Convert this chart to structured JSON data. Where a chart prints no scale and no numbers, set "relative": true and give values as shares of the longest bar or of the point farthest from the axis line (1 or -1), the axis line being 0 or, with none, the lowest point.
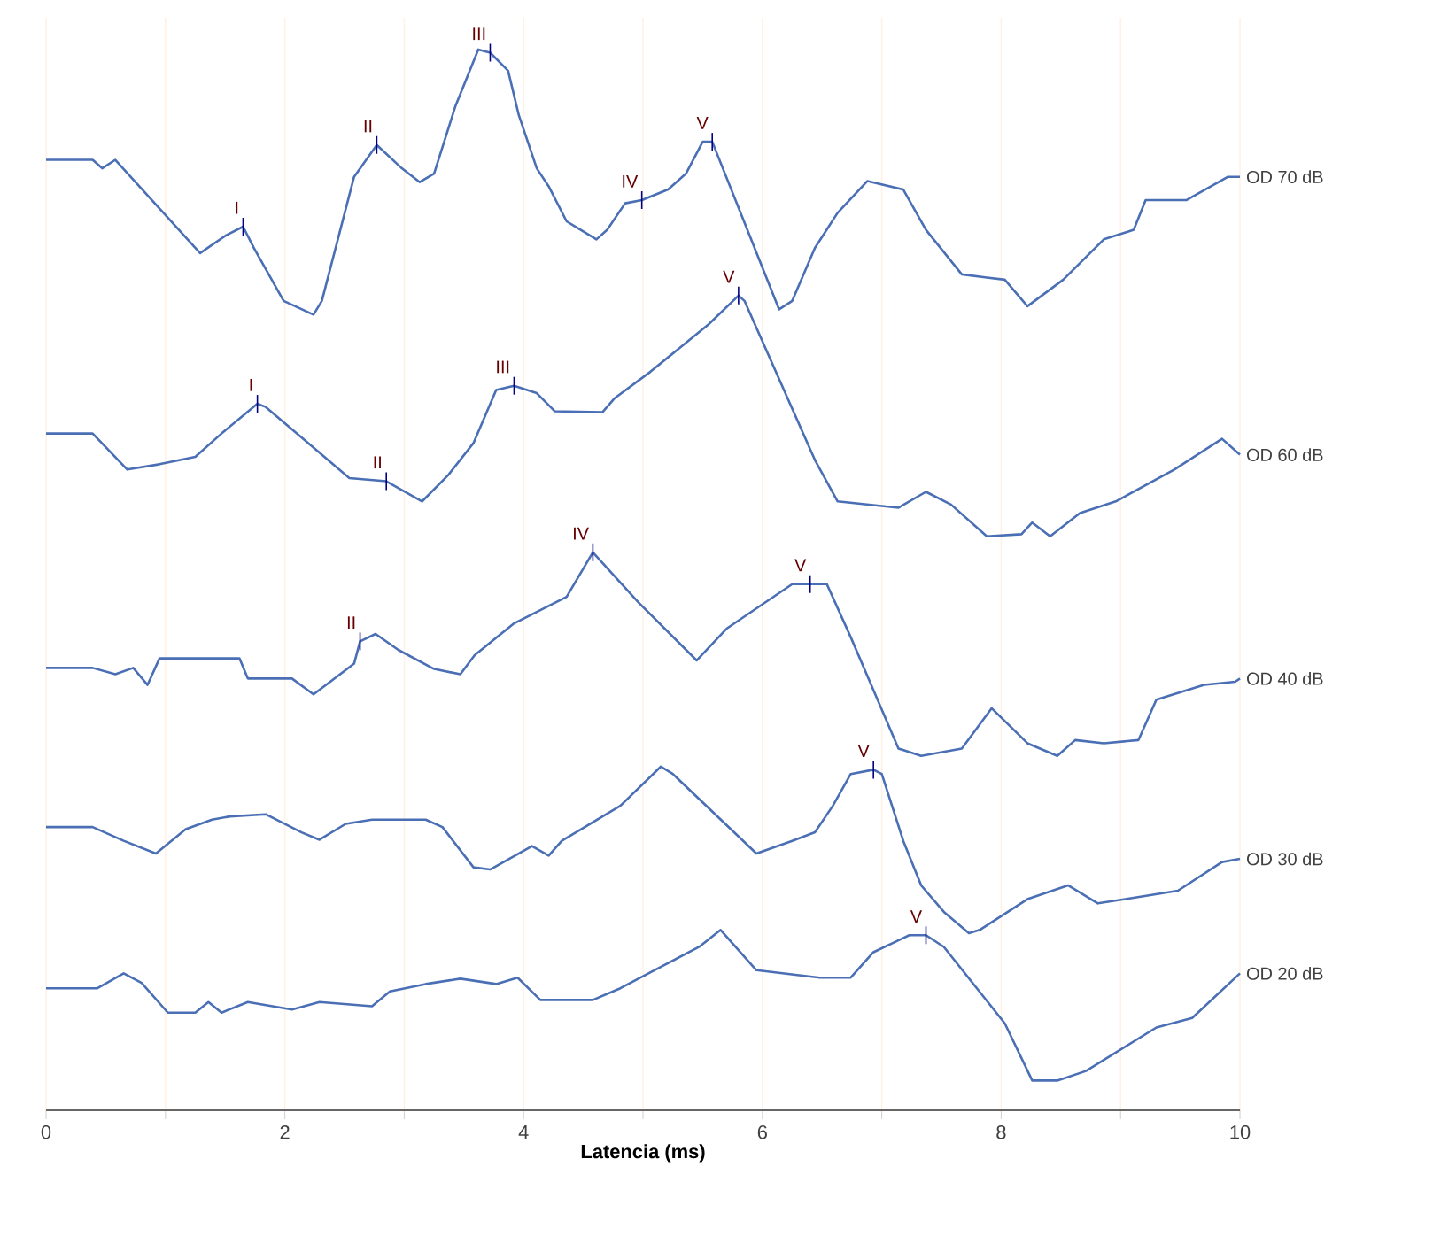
{
  "chart_data": {
    "type": "line",
    "relative": true,
    "xlabel": "Latencia (ms)",
    "xlim": [
      0,
      10
    ],
    "xticks": [
      0,
      {
        "value": 1,
        "label": null
      },
      2,
      {
        "value": 3,
        "label": null
      },
      4,
      {
        "value": 5,
        "label": null
      },
      6,
      {
        "value": 7,
        "label": null
      },
      8,
      {
        "value": 9,
        "label": null
      },
      10
    ],
    "grid": "x",
    "marker": "none",
    "line_style": "solid",
    "series": [
      {
        "name": "OD 70 dB",
        "color": "#4a6fb5",
        "x": [
          0,
          0.39,
          0.47,
          0.58,
          1.29,
          1.51,
          1.65,
          1.74,
          1.99,
          2.24,
          2.31,
          2.58,
          2.77,
          2.98,
          3.13,
          3.25,
          3.43,
          3.62,
          3.72,
          3.87,
          3.96,
          4.11,
          4.21,
          4.36,
          4.61,
          4.7,
          4.85,
          4.99,
          5.21,
          5.36,
          5.5,
          5.58,
          6.14,
          6.25,
          6.44,
          6.63,
          6.88,
          7.18,
          7.37,
          7.67,
          7.88,
          8.03,
          8.22,
          8.52,
          8.86,
          9.11,
          9.21,
          9.55,
          9.9,
          10.0
        ],
        "values": [
          0.896,
          0.896,
          0.888,
          0.896,
          0.808,
          0.825,
          0.833,
          0.813,
          0.763,
          0.75,
          0.763,
          0.88,
          0.91,
          0.888,
          0.875,
          0.883,
          0.947,
          1.0,
          0.997,
          0.98,
          0.938,
          0.888,
          0.871,
          0.838,
          0.821,
          0.83,
          0.855,
          0.858,
          0.868,
          0.883,
          0.913,
          0.913,
          0.755,
          0.763,
          0.813,
          0.846,
          0.876,
          0.868,
          0.83,
          0.788,
          0.785,
          0.783,
          0.758,
          0.783,
          0.821,
          0.83,
          0.858,
          0.858,
          0.88,
          0.88
        ]
      },
      {
        "name": "OD 60 dB",
        "color": "#4a6fb5",
        "x": [
          0,
          0.39,
          0.68,
          0.95,
          1.25,
          1.47,
          1.77,
          1.84,
          2.54,
          2.85,
          3.15,
          3.37,
          3.58,
          3.77,
          3.92,
          4.11,
          4.26,
          4.66,
          4.76,
          5.06,
          5.55,
          5.8,
          5.85,
          6.44,
          6.63,
          7.14,
          7.37,
          7.58,
          7.88,
          8.17,
          8.26,
          8.41,
          8.66,
          8.96,
          9.45,
          9.85,
          10.0
        ],
        "values": [
          0.638,
          0.638,
          0.604,
          0.609,
          0.616,
          0.638,
          0.666,
          0.663,
          0.596,
          0.593,
          0.574,
          0.599,
          0.629,
          0.679,
          0.683,
          0.676,
          0.659,
          0.658,
          0.671,
          0.696,
          0.741,
          0.768,
          0.763,
          0.613,
          0.574,
          0.568,
          0.583,
          0.571,
          0.541,
          0.543,
          0.554,
          0.541,
          0.563,
          0.574,
          0.604,
          0.633,
          0.618
        ]
      },
      {
        "name": "OD 40 dB",
        "color": "#4a6fb5",
        "x": [
          0,
          0.39,
          0.58,
          0.73,
          0.85,
          0.95,
          1.62,
          1.69,
          2.06,
          2.24,
          2.58,
          2.63,
          2.76,
          2.95,
          3.25,
          3.47,
          3.59,
          3.92,
          4.36,
          4.58,
          4.96,
          5.45,
          5.7,
          6.25,
          6.4,
          6.54,
          6.74,
          7.14,
          7.33,
          7.67,
          7.92,
          8.22,
          8.47,
          8.62,
          8.86,
          9.15,
          9.3,
          9.7,
          9.96,
          10.0
        ],
        "values": [
          0.417,
          0.417,
          0.411,
          0.417,
          0.401,
          0.426,
          0.426,
          0.407,
          0.407,
          0.392,
          0.421,
          0.442,
          0.449,
          0.434,
          0.416,
          0.411,
          0.429,
          0.459,
          0.484,
          0.526,
          0.479,
          0.424,
          0.454,
          0.496,
          0.496,
          0.496,
          0.446,
          0.341,
          0.334,
          0.341,
          0.379,
          0.346,
          0.334,
          0.349,
          0.346,
          0.349,
          0.387,
          0.401,
          0.404,
          0.407
        ]
      },
      {
        "name": "OD 30 dB",
        "color": "#4a6fb5",
        "x": [
          0,
          0.39,
          0.65,
          0.92,
          1.17,
          1.39,
          1.54,
          1.84,
          2.14,
          2.29,
          2.51,
          2.73,
          3.18,
          3.32,
          3.58,
          3.72,
          4.07,
          4.21,
          4.32,
          4.81,
          5.15,
          5.25,
          5.95,
          6.25,
          6.44,
          6.59,
          6.74,
          6.93,
          7.0,
          7.18,
          7.33,
          7.52,
          7.73,
          7.82,
          8.22,
          8.56,
          8.81,
          9.04,
          9.48,
          9.85,
          10.0
        ],
        "values": [
          0.267,
          0.267,
          0.254,
          0.242,
          0.265,
          0.274,
          0.277,
          0.279,
          0.262,
          0.255,
          0.27,
          0.274,
          0.274,
          0.267,
          0.229,
          0.227,
          0.249,
          0.24,
          0.254,
          0.287,
          0.324,
          0.317,
          0.242,
          0.254,
          0.262,
          0.287,
          0.317,
          0.321,
          0.317,
          0.254,
          0.212,
          0.187,
          0.167,
          0.17,
          0.199,
          0.212,
          0.195,
          0.199,
          0.207,
          0.234,
          0.237
        ]
      },
      {
        "name": "OD 20 dB",
        "color": "#4a6fb5",
        "x": [
          0,
          0.43,
          0.65,
          0.8,
          1.02,
          1.25,
          1.36,
          1.47,
          1.69,
          2.06,
          2.29,
          2.73,
          2.88,
          3.18,
          3.47,
          3.77,
          3.95,
          4.14,
          4.58,
          4.81,
          5.18,
          5.47,
          5.65,
          5.95,
          6.48,
          6.74,
          6.93,
          7.23,
          7.37,
          7.52,
          8.03,
          8.26,
          8.47,
          8.71,
          9.3,
          9.6,
          10.0
        ],
        "values": [
          0.115,
          0.115,
          0.129,
          0.12,
          0.092,
          0.092,
          0.102,
          0.092,
          0.102,
          0.095,
          0.102,
          0.098,
          0.112,
          0.119,
          0.124,
          0.119,
          0.125,
          0.104,
          0.104,
          0.115,
          0.137,
          0.154,
          0.17,
          0.132,
          0.125,
          0.125,
          0.149,
          0.165,
          0.165,
          0.154,
          0.082,
          0.028,
          0.028,
          0.037,
          0.078,
          0.087,
          0.129
        ]
      }
    ],
    "annotations": [
      {
        "text": "I",
        "x": 1.65,
        "y": 0.833
      },
      {
        "text": "II",
        "x": 2.77,
        "y": 0.91
      },
      {
        "text": "III",
        "x": 3.72,
        "y": 0.997
      },
      {
        "text": "IV",
        "x": 4.99,
        "y": 0.858
      },
      {
        "text": "V",
        "x": 5.58,
        "y": 0.913
      },
      {
        "text": "I",
        "x": 1.77,
        "y": 0.666
      },
      {
        "text": "II",
        "x": 2.85,
        "y": 0.593
      },
      {
        "text": "III",
        "x": 3.92,
        "y": 0.683
      },
      {
        "text": "V",
        "x": 5.8,
        "y": 0.768
      },
      {
        "text": "II",
        "x": 2.63,
        "y": 0.442
      },
      {
        "text": "IV",
        "x": 4.58,
        "y": 0.526
      },
      {
        "text": "V",
        "x": 6.4,
        "y": 0.496
      },
      {
        "text": "V",
        "x": 6.93,
        "y": 0.321
      },
      {
        "text": "V",
        "x": 7.37,
        "y": 0.165
      }
    ]
  }
}
